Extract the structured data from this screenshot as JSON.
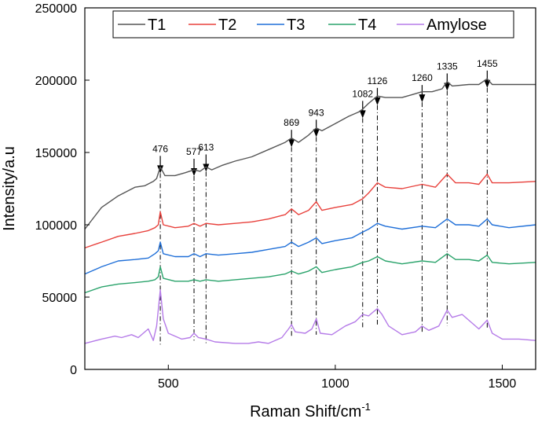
{
  "chart_data": {
    "type": "line",
    "title": "",
    "xlabel": "Raman Shift/cm",
    "xlabel_sup": "-1",
    "ylabel": "Intensity/a.u",
    "xlim": [
      250,
      1600
    ],
    "ylim": [
      0,
      250000
    ],
    "xticks": [
      500,
      1000,
      1500
    ],
    "yticks": [
      0,
      50000,
      100000,
      150000,
      200000,
      250000
    ],
    "legend_position": "top",
    "series": [
      {
        "name": "T1",
        "color": "#555555",
        "points": [
          [
            250,
            97000
          ],
          [
            300,
            112000
          ],
          [
            350,
            120000
          ],
          [
            400,
            126000
          ],
          [
            430,
            127000
          ],
          [
            455,
            130000
          ],
          [
            465,
            132000
          ],
          [
            476,
            140000
          ],
          [
            490,
            134000
          ],
          [
            520,
            134000
          ],
          [
            550,
            136000
          ],
          [
            577,
            138000
          ],
          [
            595,
            137000
          ],
          [
            613,
            140000
          ],
          [
            630,
            138000
          ],
          [
            660,
            141000
          ],
          [
            700,
            144000
          ],
          [
            750,
            147000
          ],
          [
            800,
            152000
          ],
          [
            850,
            157000
          ],
          [
            869,
            160000
          ],
          [
            890,
            157000
          ],
          [
            920,
            162000
          ],
          [
            943,
            167000
          ],
          [
            960,
            165000
          ],
          [
            1000,
            170000
          ],
          [
            1040,
            175000
          ],
          [
            1070,
            178000
          ],
          [
            1082,
            180000
          ],
          [
            1100,
            184000
          ],
          [
            1126,
            189000
          ],
          [
            1150,
            188000
          ],
          [
            1200,
            188000
          ],
          [
            1230,
            190000
          ],
          [
            1260,
            192000
          ],
          [
            1290,
            192000
          ],
          [
            1320,
            194000
          ],
          [
            1335,
            199000
          ],
          [
            1350,
            196000
          ],
          [
            1400,
            197000
          ],
          [
            1430,
            197000
          ],
          [
            1455,
            201000
          ],
          [
            1470,
            197000
          ],
          [
            1520,
            197000
          ],
          [
            1600,
            197000
          ]
        ]
      },
      {
        "name": "T2",
        "color": "#e8413c",
        "points": [
          [
            250,
            84000
          ],
          [
            300,
            88000
          ],
          [
            350,
            92000
          ],
          [
            400,
            94000
          ],
          [
            440,
            96000
          ],
          [
            460,
            98000
          ],
          [
            470,
            100000
          ],
          [
            476,
            109000
          ],
          [
            485,
            100000
          ],
          [
            520,
            98000
          ],
          [
            560,
            99000
          ],
          [
            577,
            101000
          ],
          [
            595,
            99000
          ],
          [
            613,
            101000
          ],
          [
            650,
            100000
          ],
          [
            700,
            101000
          ],
          [
            750,
            102000
          ],
          [
            800,
            104000
          ],
          [
            850,
            107000
          ],
          [
            869,
            111000
          ],
          [
            890,
            107000
          ],
          [
            920,
            110000
          ],
          [
            943,
            116000
          ],
          [
            960,
            110000
          ],
          [
            1000,
            112000
          ],
          [
            1050,
            114000
          ],
          [
            1082,
            118000
          ],
          [
            1100,
            122000
          ],
          [
            1126,
            129000
          ],
          [
            1150,
            126000
          ],
          [
            1200,
            125000
          ],
          [
            1260,
            128000
          ],
          [
            1300,
            126000
          ],
          [
            1335,
            135000
          ],
          [
            1360,
            129000
          ],
          [
            1400,
            129000
          ],
          [
            1430,
            128000
          ],
          [
            1455,
            135000
          ],
          [
            1470,
            129000
          ],
          [
            1520,
            129000
          ],
          [
            1600,
            130000
          ]
        ]
      },
      {
        "name": "T3",
        "color": "#1f6fd8",
        "points": [
          [
            250,
            66000
          ],
          [
            300,
            71000
          ],
          [
            350,
            75000
          ],
          [
            400,
            76000
          ],
          [
            440,
            77000
          ],
          [
            460,
            80000
          ],
          [
            470,
            82000
          ],
          [
            476,
            88000
          ],
          [
            485,
            80000
          ],
          [
            520,
            78000
          ],
          [
            560,
            78000
          ],
          [
            577,
            80000
          ],
          [
            595,
            78000
          ],
          [
            613,
            80000
          ],
          [
            650,
            79000
          ],
          [
            700,
            80000
          ],
          [
            750,
            81000
          ],
          [
            800,
            83000
          ],
          [
            850,
            85000
          ],
          [
            869,
            88000
          ],
          [
            890,
            85000
          ],
          [
            920,
            88000
          ],
          [
            943,
            91000
          ],
          [
            960,
            87000
          ],
          [
            1000,
            89000
          ],
          [
            1050,
            91000
          ],
          [
            1082,
            95000
          ],
          [
            1100,
            97000
          ],
          [
            1126,
            101000
          ],
          [
            1150,
            99000
          ],
          [
            1200,
            97000
          ],
          [
            1260,
            99000
          ],
          [
            1300,
            98000
          ],
          [
            1335,
            104000
          ],
          [
            1360,
            100000
          ],
          [
            1400,
            100000
          ],
          [
            1430,
            99000
          ],
          [
            1455,
            104000
          ],
          [
            1470,
            100000
          ],
          [
            1520,
            98000
          ],
          [
            1600,
            100000
          ]
        ]
      },
      {
        "name": "T4",
        "color": "#2aa36b",
        "points": [
          [
            250,
            53000
          ],
          [
            300,
            57000
          ],
          [
            350,
            59000
          ],
          [
            400,
            60000
          ],
          [
            440,
            61000
          ],
          [
            460,
            62000
          ],
          [
            470,
            64000
          ],
          [
            476,
            71000
          ],
          [
            485,
            63000
          ],
          [
            520,
            61000
          ],
          [
            560,
            61000
          ],
          [
            577,
            62000
          ],
          [
            595,
            61000
          ],
          [
            613,
            62000
          ],
          [
            650,
            61000
          ],
          [
            700,
            62000
          ],
          [
            750,
            63000
          ],
          [
            800,
            64000
          ],
          [
            850,
            66000
          ],
          [
            869,
            68000
          ],
          [
            890,
            66000
          ],
          [
            920,
            68000
          ],
          [
            943,
            71000
          ],
          [
            960,
            67000
          ],
          [
            1000,
            69000
          ],
          [
            1050,
            71000
          ],
          [
            1082,
            74000
          ],
          [
            1100,
            75000
          ],
          [
            1126,
            78000
          ],
          [
            1150,
            75000
          ],
          [
            1200,
            73000
          ],
          [
            1260,
            75000
          ],
          [
            1300,
            74000
          ],
          [
            1335,
            80000
          ],
          [
            1360,
            76000
          ],
          [
            1400,
            76000
          ],
          [
            1430,
            75000
          ],
          [
            1455,
            79000
          ],
          [
            1470,
            74000
          ],
          [
            1520,
            73000
          ],
          [
            1600,
            74000
          ]
        ]
      },
      {
        "name": "Amylose",
        "color": "#b57be8",
        "points": [
          [
            250,
            18000
          ],
          [
            300,
            21000
          ],
          [
            340,
            23000
          ],
          [
            360,
            22000
          ],
          [
            390,
            24000
          ],
          [
            410,
            22000
          ],
          [
            440,
            28000
          ],
          [
            455,
            20000
          ],
          [
            465,
            30000
          ],
          [
            476,
            55000
          ],
          [
            485,
            35000
          ],
          [
            500,
            25000
          ],
          [
            540,
            21000
          ],
          [
            565,
            22000
          ],
          [
            577,
            25000
          ],
          [
            590,
            22000
          ],
          [
            613,
            21000
          ],
          [
            640,
            19000
          ],
          [
            700,
            18000
          ],
          [
            740,
            18000
          ],
          [
            770,
            19000
          ],
          [
            800,
            18000
          ],
          [
            840,
            22000
          ],
          [
            860,
            28000
          ],
          [
            869,
            31000
          ],
          [
            880,
            26000
          ],
          [
            910,
            25000
          ],
          [
            930,
            28000
          ],
          [
            943,
            35000
          ],
          [
            955,
            25000
          ],
          [
            990,
            24000
          ],
          [
            1030,
            30000
          ],
          [
            1060,
            33000
          ],
          [
            1082,
            38000
          ],
          [
            1100,
            37000
          ],
          [
            1115,
            40000
          ],
          [
            1126,
            42000
          ],
          [
            1140,
            38000
          ],
          [
            1160,
            30000
          ],
          [
            1200,
            24000
          ],
          [
            1240,
            26000
          ],
          [
            1260,
            30000
          ],
          [
            1280,
            27000
          ],
          [
            1310,
            30000
          ],
          [
            1335,
            41000
          ],
          [
            1350,
            36000
          ],
          [
            1380,
            38000
          ],
          [
            1410,
            32000
          ],
          [
            1430,
            28000
          ],
          [
            1455,
            34000
          ],
          [
            1470,
            25000
          ],
          [
            1500,
            21000
          ],
          [
            1550,
            21000
          ],
          [
            1600,
            20000
          ]
        ]
      }
    ],
    "annotations": [
      {
        "x": 476,
        "label": "476",
        "y_top": 152000,
        "y_bottom": 17000
      },
      {
        "x": 577,
        "label": "577",
        "y_top": 150000,
        "y_bottom": 20000
      },
      {
        "x": 613,
        "label": "613",
        "y_top": 153000,
        "y_bottom": 18000
      },
      {
        "x": 869,
        "label": "869",
        "y_top": 170000,
        "y_bottom": 22000
      },
      {
        "x": 943,
        "label": "943",
        "y_top": 177000,
        "y_bottom": 24000
      },
      {
        "x": 1082,
        "label": "1082",
        "y_top": 190000,
        "y_bottom": 28000
      },
      {
        "x": 1126,
        "label": "1126",
        "y_top": 199000,
        "y_bottom": 30000
      },
      {
        "x": 1260,
        "label": "1260",
        "y_top": 201000,
        "y_bottom": 26000
      },
      {
        "x": 1335,
        "label": "1335",
        "y_top": 209000,
        "y_bottom": 30000
      },
      {
        "x": 1455,
        "label": "1455",
        "y_top": 211000,
        "y_bottom": 28000
      }
    ]
  }
}
